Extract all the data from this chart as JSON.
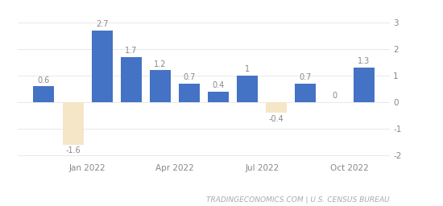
{
  "values": [
    0.6,
    -1.6,
    2.7,
    1.7,
    1.2,
    0.7,
    0.4,
    1.0,
    -0.4,
    0.7,
    0.0,
    1.3
  ],
  "bar_colors_positive": "#4472c4",
  "bar_colors_negative": "#f5e6c8",
  "ylim": [
    -2.2,
    3.3
  ],
  "yticks": [
    -2,
    -1,
    0,
    1,
    2,
    3
  ],
  "x_tick_positions": [
    1.5,
    4.5,
    7.5,
    10.5
  ],
  "x_tick_labels": [
    "Jan 2022",
    "Apr 2022",
    "Jul 2022",
    "Oct 2022"
  ],
  "footer_text": "TRADINGECONOMICS.COM | U.S. CENSUS BUREAU",
  "background_color": "#ffffff",
  "grid_color": "#e8e8e8",
  "label_fontsize": 7.0,
  "tick_fontsize": 7.5,
  "footer_fontsize": 6.5,
  "value_labels": [
    "0.6",
    "-1.6",
    "2.7",
    "1.7",
    "1.2",
    "0.7",
    "0.4",
    "1",
    "-0.4",
    "0.7",
    "0",
    "1.3"
  ]
}
